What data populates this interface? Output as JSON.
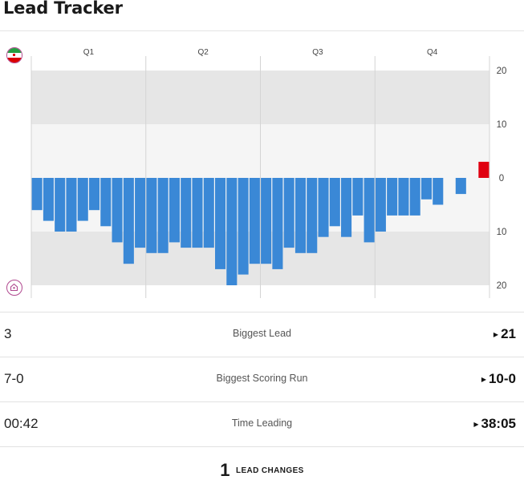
{
  "header": {
    "title": "Lead Tracker"
  },
  "teams": {
    "top": {
      "logo_icon": "iran-flag-logo-icon",
      "colors": [
        "#239f40",
        "#ffffff",
        "#da0000"
      ]
    },
    "bottom": {
      "logo_icon": "team-crest-logo-icon"
    }
  },
  "colors": {
    "top_team": "#e00010",
    "bottom_team": "#3a88d6",
    "band_dark": "#e6e6e6",
    "band_light": "#f5f5f5"
  },
  "chart_data": {
    "type": "bar",
    "quarters": [
      "Q1",
      "Q2",
      "Q3",
      "Q4"
    ],
    "y_ticks": [
      20,
      10,
      0,
      10,
      20
    ],
    "ylim": [
      -20,
      20
    ],
    "grid": true,
    "values": [
      -6,
      -8,
      -10,
      -10,
      -8,
      -6,
      -9,
      -12,
      -16,
      -13,
      -14,
      -14,
      -12,
      -13,
      -13,
      -13,
      -17,
      -20,
      -18,
      -16,
      -16,
      -17,
      -13,
      -14,
      -14,
      -11,
      -9,
      -11,
      -7,
      -12,
      -10,
      -7,
      -7,
      -7,
      -4,
      -5,
      null,
      -3,
      null,
      3
    ]
  },
  "stats": [
    {
      "left": "3",
      "label": "Biggest Lead",
      "right": "21"
    },
    {
      "left": "7-0",
      "label": "Biggest Scoring Run",
      "right": "10-0"
    },
    {
      "left": "00:42",
      "label": "Time Leading",
      "right": "38:05"
    }
  ],
  "lead_changes": {
    "count": "1",
    "label": "LEAD CHANGES"
  }
}
